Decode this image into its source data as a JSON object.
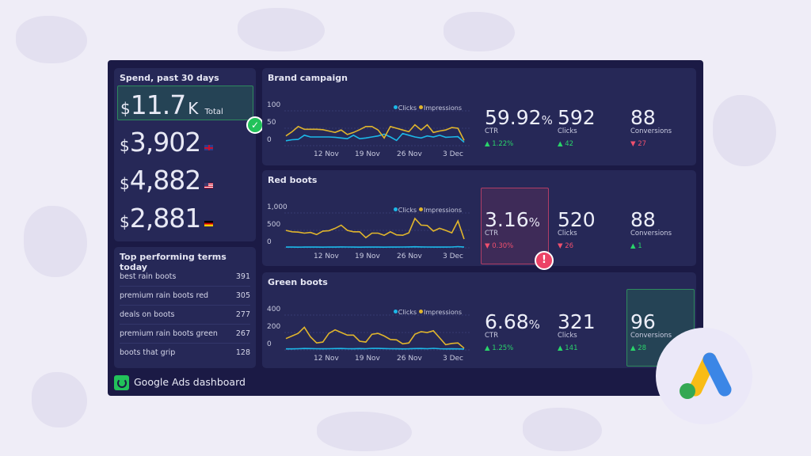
{
  "spend": {
    "title": "Spend, past 30 days",
    "total": {
      "currency": "$",
      "value": "11.7",
      "suffix": "K",
      "label": "Total"
    },
    "rows": [
      {
        "currency": "$",
        "value": "3,902",
        "flag": "uk-flag"
      },
      {
        "currency": "$",
        "value": "4,882",
        "flag": "us-flag"
      },
      {
        "currency": "$",
        "value": "2,881",
        "flag": "germany-flag"
      }
    ]
  },
  "terms": {
    "title": "Top performing terms today",
    "items": [
      {
        "term": "best rain boots",
        "value": "391"
      },
      {
        "term": "premium rain boots red",
        "value": "305"
      },
      {
        "term": "deals on boots",
        "value": "277"
      },
      {
        "term": "premium rain boots green",
        "value": "267"
      },
      {
        "term": "boots that grip",
        "value": "128"
      }
    ]
  },
  "footer": {
    "title": "Google Ads dashboard"
  },
  "colors": {
    "clicks": "#1cb8e8",
    "impressions": "#e0b52c",
    "up": "#2ad46a",
    "down": "#f0506e"
  },
  "campaigns": [
    {
      "title": "Brand campaign",
      "kpis": [
        {
          "value": "59.92",
          "unit": "%",
          "label": "CTR",
          "change": "1.22%",
          "dir": "up"
        },
        {
          "value": "592",
          "unit": "",
          "label": "Clicks",
          "change": "42",
          "dir": "up"
        },
        {
          "value": "88",
          "unit": "",
          "label": "Conversions",
          "change": "27",
          "dir": "down"
        }
      ]
    },
    {
      "title": "Red boots",
      "kpis": [
        {
          "value": "3.16",
          "unit": "%",
          "label": "CTR",
          "change": "0.30%",
          "dir": "down"
        },
        {
          "value": "520",
          "unit": "",
          "label": "Clicks",
          "change": "26",
          "dir": "down"
        },
        {
          "value": "88",
          "unit": "",
          "label": "Conversions",
          "change": "1",
          "dir": "up"
        }
      ]
    },
    {
      "title": "Green boots",
      "kpis": [
        {
          "value": "6.68",
          "unit": "%",
          "label": "CTR",
          "change": "1.25%",
          "dir": "up"
        },
        {
          "value": "321",
          "unit": "",
          "label": "Clicks",
          "change": "141",
          "dir": "up"
        },
        {
          "value": "96",
          "unit": "",
          "label": "Conversions",
          "change": "28",
          "dir": "up"
        }
      ]
    }
  ],
  "chart_data": [
    {
      "type": "line",
      "x_ticks": [
        "12 Nov",
        "19 Nov",
        "26 Nov",
        "3 Dec"
      ],
      "y_ticks": [
        "0",
        "50",
        "100"
      ],
      "ylim": [
        0,
        100
      ],
      "legend": "top-right",
      "grid": true,
      "series": [
        {
          "name": "Clicks",
          "values": [
            14,
            17,
            18,
            30,
            25,
            25,
            25,
            25,
            24,
            22,
            20,
            30,
            20,
            22,
            25,
            28,
            33,
            25,
            15,
            35,
            30,
            25,
            22,
            28,
            25,
            30,
            24,
            25,
            26,
            10
          ]
        },
        {
          "name": "Impressions",
          "values": [
            28,
            40,
            55,
            47,
            47,
            47,
            46,
            42,
            38,
            45,
            32,
            38,
            46,
            55,
            55,
            45,
            22,
            55,
            50,
            45,
            40,
            60,
            45,
            60,
            38,
            42,
            45,
            52,
            50,
            15
          ]
        }
      ]
    },
    {
      "type": "line",
      "x_ticks": [
        "12 Nov",
        "19 Nov",
        "26 Nov",
        "3 Dec"
      ],
      "y_ticks": [
        "0",
        "500",
        "1,000"
      ],
      "ylim": [
        0,
        1000
      ],
      "legend": "top-right",
      "grid": true,
      "series": [
        {
          "name": "Clicks",
          "values": [
            20,
            20,
            18,
            20,
            22,
            20,
            18,
            22,
            20,
            25,
            22,
            20,
            18,
            20,
            22,
            20,
            18,
            22,
            20,
            22,
            25,
            30,
            25,
            22,
            20,
            22,
            20,
            22,
            35,
            20
          ]
        },
        {
          "name": "Impressions",
          "values": [
            500,
            460,
            450,
            420,
            440,
            380,
            480,
            490,
            560,
            650,
            500,
            460,
            460,
            290,
            420,
            420,
            360,
            460,
            370,
            360,
            430,
            840,
            650,
            640,
            480,
            560,
            500,
            430,
            770,
            250
          ]
        }
      ]
    },
    {
      "type": "line",
      "x_ticks": [
        "12 Nov",
        "19 Nov",
        "26 Nov",
        "3 Dec"
      ],
      "y_ticks": [
        "0",
        "200",
        "400"
      ],
      "ylim": [
        0,
        400
      ],
      "legend": "top-right",
      "grid": true,
      "series": [
        {
          "name": "Clicks",
          "values": [
            12,
            12,
            14,
            16,
            15,
            14,
            13,
            14,
            15,
            16,
            14,
            13,
            15,
            14,
            18,
            17,
            15,
            14,
            13,
            12,
            13,
            15,
            16,
            14,
            18,
            14,
            12,
            13,
            12,
            10
          ]
        },
        {
          "name": "Impressions",
          "values": [
            130,
            160,
            190,
            260,
            150,
            80,
            90,
            190,
            230,
            200,
            170,
            170,
            100,
            90,
            180,
            190,
            160,
            120,
            115,
            70,
            80,
            180,
            210,
            200,
            220,
            140,
            60,
            75,
            80,
            20
          ]
        }
      ]
    }
  ]
}
